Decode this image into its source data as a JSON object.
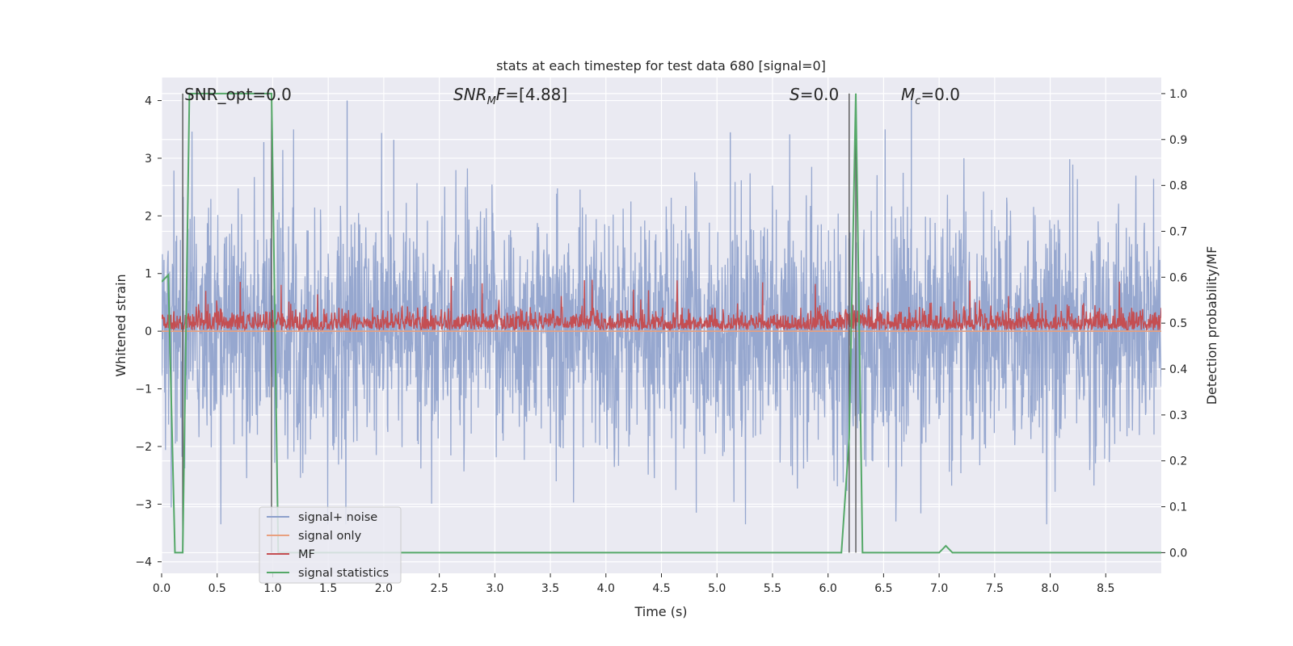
{
  "chart_data": {
    "type": "line",
    "title": "stats at each timestep for test data 680 [signal=0]",
    "xlabel": "Time (s)",
    "ylabel_left": "Whitened strain",
    "ylabel_right": "Detection probability/MF",
    "xlim": [
      0.0,
      9.0
    ],
    "ylim_left": [
      -4.2,
      4.4
    ],
    "ylim_right": [
      -0.045,
      1.035
    ],
    "x_ticks": [
      0.0,
      0.5,
      1.0,
      1.5,
      2.0,
      2.5,
      3.0,
      3.5,
      4.0,
      4.5,
      5.0,
      5.5,
      6.0,
      6.5,
      7.0,
      7.5,
      8.0,
      8.5
    ],
    "x_tick_labels": [
      "0.0",
      "0.5",
      "1.0",
      "1.5",
      "2.0",
      "2.5",
      "3.0",
      "3.5",
      "4.0",
      "4.5",
      "5.0",
      "5.5",
      "6.0",
      "6.5",
      "7.0",
      "7.5",
      "8.0",
      "8.5"
    ],
    "y_left_ticks": [
      -4,
      -3,
      -2,
      -1,
      0,
      1,
      2,
      3,
      4
    ],
    "y_left_tick_labels": [
      "−4",
      "−3",
      "−2",
      "−1",
      "0",
      "1",
      "2",
      "3",
      "4"
    ],
    "y_right_ticks": [
      0.0,
      0.1,
      0.2,
      0.3,
      0.4,
      0.5,
      0.6,
      0.7,
      0.8,
      0.9,
      1.0
    ],
    "y_right_tick_labels": [
      "0.0",
      "0.1",
      "0.2",
      "0.3",
      "0.4",
      "0.5",
      "0.6",
      "0.7",
      "0.8",
      "0.9",
      "1.0"
    ],
    "grid": true,
    "legend_position": "lower-left",
    "annotations": [
      {
        "text": "SNR_opt=0.0",
        "x": 0.19
      },
      {
        "text": "SNRMF=[4.88]",
        "x": 2.6
      },
      {
        "text": "S=0.0",
        "x": 5.6
      },
      {
        "text": "Mc=0.0",
        "x": 6.6
      }
    ],
    "vertical_lines_x": [
      0.19,
      0.99,
      6.19,
      6.25
    ],
    "series": [
      {
        "name": "signal+ noise",
        "axis": "left",
        "color": "#8da0cb",
        "style": "dense-noise",
        "description_stats": {
          "typical_min": -2.2,
          "typical_max": 2.6,
          "peak_max": 4.0,
          "peak_min": -3.3,
          "sample_rate_hz": 1024
        }
      },
      {
        "name": "signal only",
        "axis": "left",
        "color": "#e8a07f",
        "values_constant": 0.0
      },
      {
        "name": "MF",
        "axis": "left",
        "color": "#c44e52",
        "style": "dense-noise",
        "description_stats": {
          "baseline": 0.0,
          "typical_max": 0.45,
          "peak_max": 0.95
        }
      },
      {
        "name": "signal statistics",
        "axis": "right",
        "color": "#55a868",
        "x": [
          0.0,
          0.06,
          0.12,
          0.19,
          0.25,
          0.5,
          0.75,
          0.99,
          1.05,
          1.11,
          6.12,
          6.19,
          6.25,
          6.31,
          6.37,
          7.0,
          7.06,
          7.12,
          9.0
        ],
        "y": [
          0.59,
          0.605,
          0.0,
          0.0,
          1.0,
          1.0,
          1.0,
          1.0,
          0.0,
          0.0,
          0.0,
          0.25,
          1.0,
          0.0,
          0.0,
          0.0,
          0.015,
          0.0,
          0.0
        ]
      }
    ]
  }
}
